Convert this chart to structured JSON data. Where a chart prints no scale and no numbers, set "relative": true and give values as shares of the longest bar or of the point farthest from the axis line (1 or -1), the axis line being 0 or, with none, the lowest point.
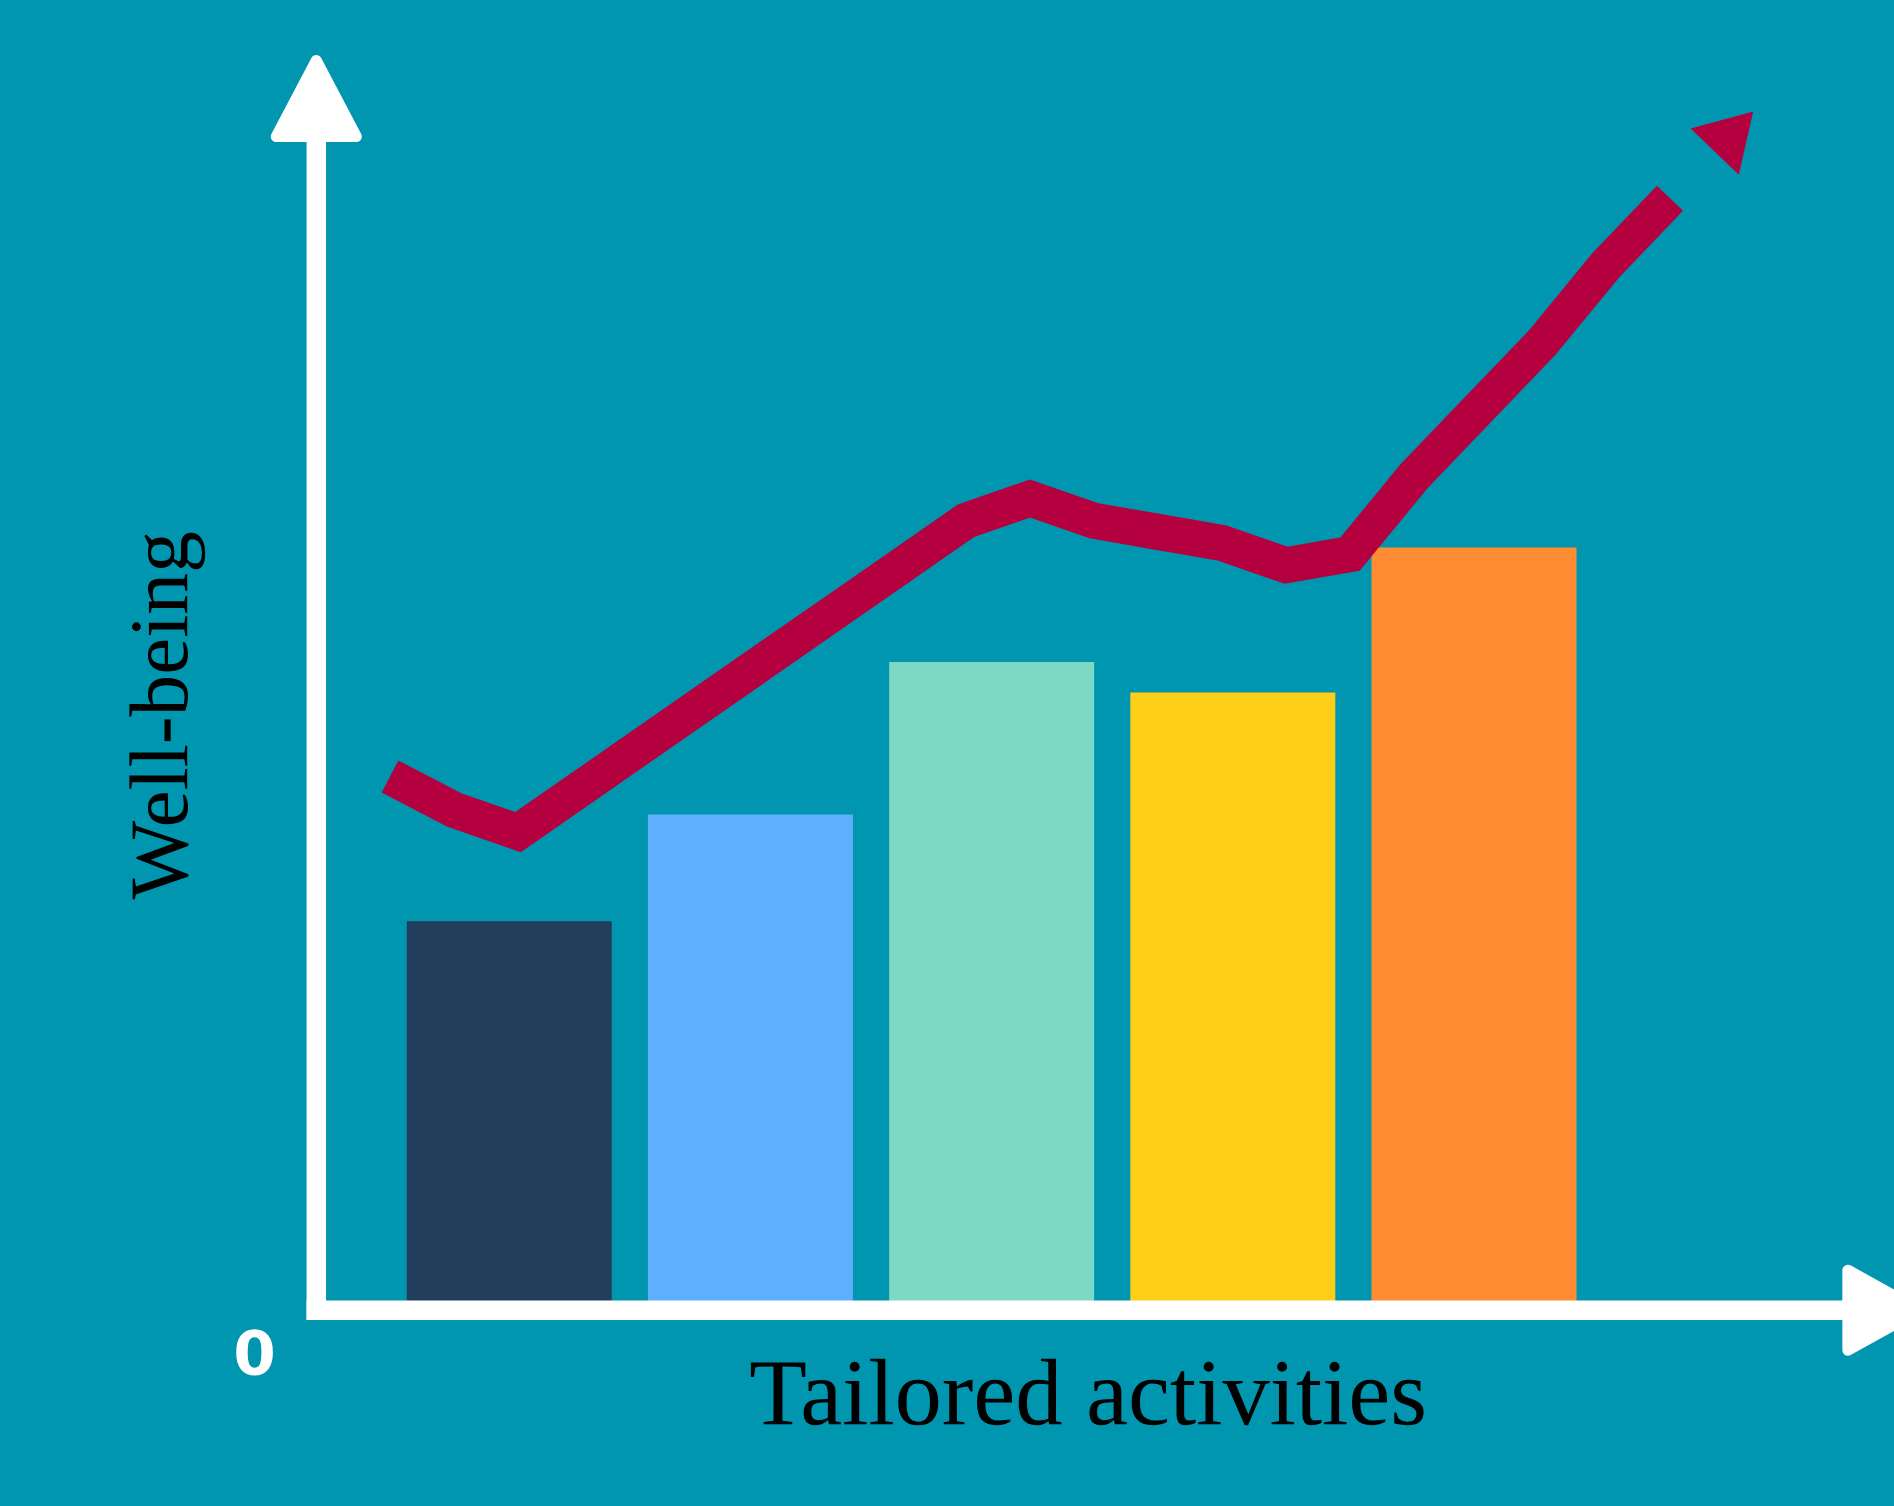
{
  "chart_data": [
    {
      "type": "bar",
      "relative": true,
      "xlabel": "Tailored activities",
      "ylabel": "Well-being",
      "categories": [
        null,
        null,
        null,
        null,
        null
      ],
      "colors": [
        "#233d5c",
        "#5eb0ff",
        "#7dd8c4",
        "#fdd017",
        "#ff8c33"
      ],
      "values": [
        0.51,
        0.65,
        0.85,
        0.81,
        1.0
      ],
      "annotations": [
        "0"
      ],
      "grid": false,
      "legend": false
    },
    {
      "type": "line",
      "relative": true,
      "color": "#b5003f",
      "categories": [
        null,
        null,
        null,
        null,
        null,
        null,
        null,
        null,
        null,
        null,
        null,
        null,
        null,
        null,
        null,
        null,
        null,
        null,
        null,
        null,
        null
      ],
      "values": [
        0.48,
        0.45,
        0.43,
        0.47,
        0.51,
        0.55,
        0.59,
        0.63,
        0.67,
        0.71,
        0.73,
        0.71,
        0.7,
        0.69,
        0.67,
        0.68,
        0.75,
        0.81,
        0.87,
        0.94,
        1.0
      ],
      "marker": "none",
      "line_style": "solid",
      "grid": false,
      "legend": false
    }
  ]
}
